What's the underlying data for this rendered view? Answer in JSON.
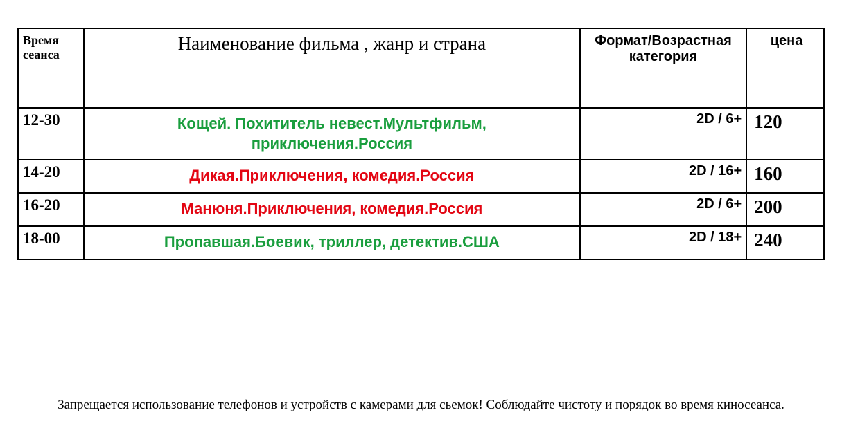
{
  "table": {
    "headers": {
      "time": "Время сеанса",
      "title": "Наименование фильма , жанр и страна",
      "format": "Формат/Возрастная категория",
      "price": "цена"
    },
    "rows": [
      {
        "time": "12-30",
        "title": "Кощей. Похититель невест.Мультфильм, приключения.Россия",
        "format": "2D / 6+",
        "price": "120",
        "color": "#1a9e3e",
        "tall": true
      },
      {
        "time": "14-20",
        "title": "Дикая.Приключения, комедия.Россия",
        "format": "2D / 16+",
        "price": "160",
        "color": "#e30613",
        "tall": false
      },
      {
        "time": "16-20",
        "title": "Манюня.Приключения, комедия.Россия",
        "format": "2D / 6+",
        "price": "200",
        "color": "#e30613",
        "tall": false
      },
      {
        "time": "18-00",
        "title": "Пропавшая.Боевик, триллер, детектив.США",
        "format": "2D / 18+",
        "price": "240",
        "color": "#1a9e3e",
        "tall": false
      }
    ],
    "colors": {
      "green": "#1a9e3e",
      "red": "#e30613",
      "border": "#000000",
      "text": "#000000"
    }
  },
  "footer": "Запрещается использование телефонов и устройств с камерами для сьемок! Соблюдайте чистоту и порядок во время киносеанса."
}
